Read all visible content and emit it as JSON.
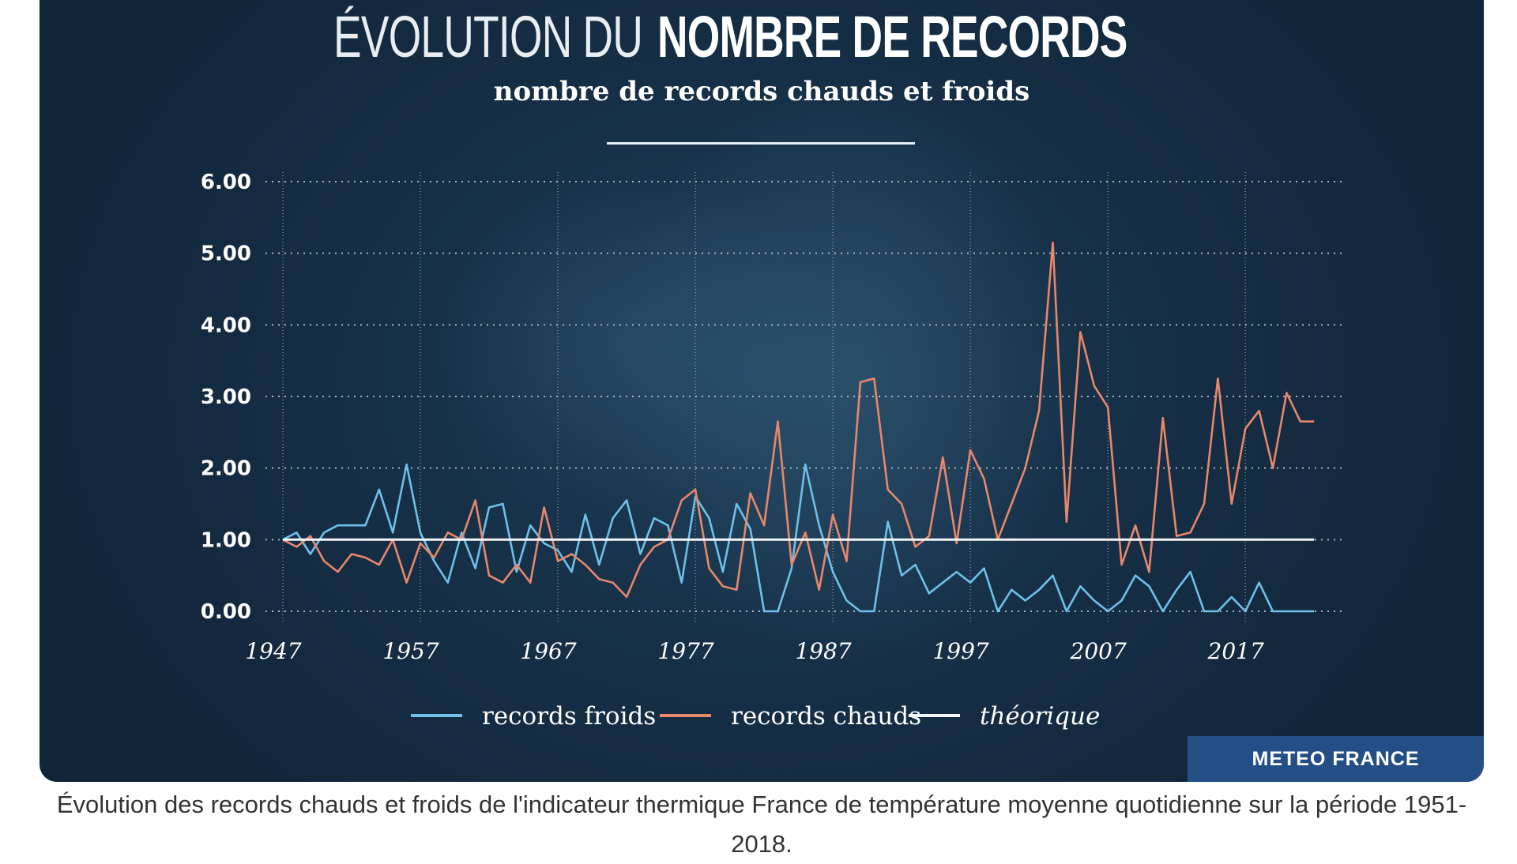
{
  "header": {
    "title_light": "ÉVOLUTION DU",
    "title_bold": "NOMBRE DE RECORDS",
    "subtitle": "nombre de records chauds et froids"
  },
  "brand": "METEO FRANCE",
  "caption": "Évolution des records chauds et froids de l'indicateur thermique France de température moyenne quotidienne sur la période 1951-2018.",
  "colors": {
    "froids": "#6ec0e8",
    "chauds": "#e8876a",
    "theorique": "#f2f4f6",
    "grid": "#aab4be",
    "brand_bg": "#234e86"
  },
  "chart_data": {
    "type": "line",
    "xlim": [
      1947,
      2024
    ],
    "ylim": [
      0,
      6
    ],
    "x_ticks": [
      "1947",
      "1957",
      "1967",
      "1977",
      "1987",
      "1997",
      "2007",
      "2017"
    ],
    "y_ticks": [
      "0.00",
      "1.00",
      "2.00",
      "3.00",
      "4.00",
      "5.00",
      "6.00"
    ],
    "grid": "dotted horizontal and vertical",
    "legend_position": "bottom-center",
    "legend": [
      "records froids",
      "records chauds",
      "théorique"
    ],
    "x": [
      1947,
      1948,
      1949,
      1950,
      1951,
      1952,
      1953,
      1954,
      1955,
      1956,
      1957,
      1958,
      1959,
      1960,
      1961,
      1962,
      1963,
      1964,
      1965,
      1966,
      1967,
      1968,
      1969,
      1970,
      1971,
      1972,
      1973,
      1974,
      1975,
      1976,
      1977,
      1978,
      1979,
      1980,
      1981,
      1982,
      1983,
      1984,
      1985,
      1986,
      1987,
      1988,
      1989,
      1990,
      1991,
      1992,
      1993,
      1994,
      1995,
      1996,
      1997,
      1998,
      1999,
      2000,
      2001,
      2002,
      2003,
      2004,
      2005,
      2006,
      2007,
      2008,
      2009,
      2010,
      2011,
      2012,
      2013,
      2014,
      2015,
      2016,
      2017,
      2018,
      2019,
      2020,
      2021,
      2022
    ],
    "series": [
      {
        "name": "records froids",
        "values": [
          1.0,
          1.1,
          0.8,
          1.1,
          1.2,
          1.2,
          1.2,
          1.7,
          1.1,
          2.05,
          1.1,
          0.7,
          0.4,
          1.1,
          0.6,
          1.45,
          1.5,
          0.55,
          1.2,
          0.95,
          0.85,
          0.55,
          1.35,
          0.65,
          1.3,
          1.55,
          0.8,
          1.3,
          1.2,
          0.4,
          1.6,
          1.3,
          0.55,
          1.5,
          1.15,
          0.0,
          0.0,
          0.6,
          2.05,
          1.2,
          0.55,
          0.15,
          0.0,
          0.0,
          1.25,
          0.5,
          0.65,
          0.25,
          0.4,
          0.55,
          0.4,
          0.6,
          0.0,
          0.3,
          0.15,
          0.3,
          0.5,
          0.0,
          0.35,
          0.15,
          0.0,
          0.15,
          0.5,
          0.35,
          0.0,
          0.3,
          0.55,
          0.0,
          0.0,
          0.2,
          0.0,
          0.4,
          0.0,
          0.0,
          0.0,
          0.0
        ]
      },
      {
        "name": "records chauds",
        "values": [
          1.0,
          0.9,
          1.05,
          0.7,
          0.55,
          0.8,
          0.75,
          0.65,
          1.0,
          0.4,
          0.95,
          0.75,
          1.1,
          1.0,
          1.55,
          0.5,
          0.4,
          0.65,
          0.4,
          1.45,
          0.7,
          0.8,
          0.65,
          0.45,
          0.4,
          0.2,
          0.65,
          0.9,
          1.0,
          1.55,
          1.7,
          0.6,
          0.35,
          0.3,
          1.65,
          1.2,
          2.65,
          0.65,
          1.1,
          0.3,
          1.35,
          0.7,
          3.2,
          3.25,
          1.7,
          1.5,
          0.9,
          1.05,
          2.15,
          0.95,
          2.25,
          1.85,
          1.0,
          1.5,
          2.0,
          2.8,
          5.15,
          1.25,
          3.9,
          3.15,
          2.85,
          0.65,
          1.2,
          0.55,
          2.7,
          1.05,
          1.1,
          1.5,
          3.25,
          1.5,
          2.55,
          2.8,
          2.0,
          3.05,
          2.65,
          2.65
        ]
      },
      {
        "name": "théorique",
        "values": [
          1,
          1,
          1,
          1,
          1,
          1,
          1,
          1,
          1,
          1,
          1,
          1,
          1,
          1,
          1,
          1,
          1,
          1,
          1,
          1,
          1,
          1,
          1,
          1,
          1,
          1,
          1,
          1,
          1,
          1,
          1,
          1,
          1,
          1,
          1,
          1,
          1,
          1,
          1,
          1,
          1,
          1,
          1,
          1,
          1,
          1,
          1,
          1,
          1,
          1,
          1,
          1,
          1,
          1,
          1,
          1,
          1,
          1,
          1,
          1,
          1,
          1,
          1,
          1,
          1,
          1,
          1,
          1,
          1,
          1,
          1,
          1,
          1,
          1,
          1,
          1
        ]
      }
    ]
  }
}
